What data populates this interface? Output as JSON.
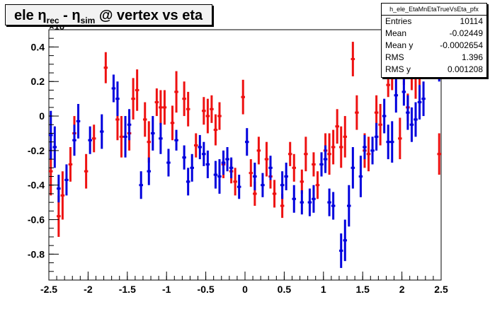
{
  "title": {
    "part1": "ele ",
    "eta1": "η",
    "sub1": "rec",
    "part2": " - ",
    "eta2": "η",
    "sub2": "sim",
    "part3": " @ vertex vs eta"
  },
  "exponent_label": "×10",
  "stats": {
    "name": "h_ele_EtaMnEtaTrueVsEta_pfx",
    "rows": [
      {
        "label": "Entries",
        "value": "10114"
      },
      {
        "label": "Mean",
        "value": "-0.02449"
      },
      {
        "label": "Mean y",
        "value": "-0.0002654"
      },
      {
        "label": "RMS",
        "value": "1.396"
      },
      {
        "label": "RMS y",
        "value": "0.001208"
      }
    ]
  },
  "colors": {
    "red_series": "#ee1111",
    "blue_series": "#0000dd"
  },
  "chart_data": {
    "type": "scatter",
    "title": "ele ηrec - ηsim @ vertex vs eta",
    "xlim": [
      -2.5,
      2.5
    ],
    "ylim": [
      -0.95,
      0.5
    ],
    "x_ticks": [
      -2.5,
      -2,
      -1.5,
      -1,
      -0.5,
      0,
      0.5,
      1,
      1.5,
      2,
      2.5
    ],
    "y_ticks": [
      -0.8,
      -0.6,
      -0.4,
      -0.2,
      0,
      0.2,
      0.4
    ],
    "x_tick_labels": [
      "-2.5",
      "-2",
      "-1.5",
      "-1",
      "-0.5",
      "0",
      "0.5",
      "1",
      "1.5",
      "2",
      "2.5"
    ],
    "y_tick_labels": [
      "-0.8",
      "-0.6",
      "-0.4",
      "-0.2",
      "0",
      "0.2",
      "0.4"
    ],
    "grid": false,
    "series": [
      {
        "color": "#ee1111",
        "bin_half_width": 0.025,
        "points": [
          [
            -2.475,
            -0.32,
            0.14
          ],
          [
            -2.375,
            -0.58,
            0.12
          ],
          [
            -2.325,
            -0.46,
            0.14
          ],
          [
            -2.225,
            -0.28,
            0.1
          ],
          [
            -2.175,
            -0.1,
            0.1
          ],
          [
            -2.025,
            -0.32,
            0.1
          ],
          [
            -1.925,
            -0.13,
            0.08
          ],
          [
            -1.775,
            0.28,
            0.09
          ],
          [
            -1.625,
            -0.02,
            0.12
          ],
          [
            -1.575,
            -0.12,
            0.12
          ],
          [
            -1.475,
            -0.1,
            0.1
          ],
          [
            -1.425,
            0.1,
            0.12
          ],
          [
            -1.375,
            0.15,
            0.12
          ],
          [
            -1.275,
            -0.02,
            0.1
          ],
          [
            -1.225,
            -0.15,
            0.12
          ],
          [
            -1.125,
            0.08,
            0.08
          ],
          [
            -1.075,
            0.05,
            0.1
          ],
          [
            -1.025,
            0.05,
            0.1
          ],
          [
            -0.925,
            -0.04,
            0.1
          ],
          [
            -0.875,
            0.14,
            0.12
          ],
          [
            -0.775,
            0.1,
            0.1
          ],
          [
            -0.725,
            0.04,
            0.1
          ],
          [
            -0.625,
            -0.17,
            0.07
          ],
          [
            -0.525,
            0.03,
            0.08
          ],
          [
            -0.475,
            0.0,
            0.1
          ],
          [
            -0.425,
            0.04,
            0.08
          ],
          [
            -0.375,
            -0.08,
            0.09
          ],
          [
            -0.325,
            0.0,
            0.08
          ],
          [
            -0.275,
            -0.28,
            0.08
          ],
          [
            -0.175,
            -0.32,
            0.07
          ],
          [
            -0.125,
            -0.38,
            0.08
          ],
          [
            -0.025,
            0.11,
            0.1
          ],
          [
            0.075,
            -0.33,
            0.08
          ],
          [
            0.125,
            -0.45,
            0.07
          ],
          [
            0.175,
            -0.2,
            0.08
          ],
          [
            0.275,
            -0.25,
            0.1
          ],
          [
            0.325,
            -0.35,
            0.07
          ],
          [
            0.375,
            -0.45,
            0.08
          ],
          [
            0.475,
            -0.52,
            0.07
          ],
          [
            0.575,
            -0.22,
            0.07
          ],
          [
            0.625,
            -0.3,
            0.08
          ],
          [
            0.725,
            -0.38,
            0.07
          ],
          [
            0.775,
            -0.22,
            0.1
          ],
          [
            0.875,
            -0.28,
            0.07
          ],
          [
            0.925,
            -0.4,
            0.08
          ],
          [
            1.025,
            -0.2,
            0.1
          ],
          [
            1.075,
            -0.22,
            0.12
          ],
          [
            1.125,
            -0.18,
            0.1
          ],
          [
            1.175,
            -0.06,
            0.1
          ],
          [
            1.225,
            -0.18,
            0.12
          ],
          [
            1.275,
            -0.12,
            0.12
          ],
          [
            1.375,
            0.33,
            0.1
          ],
          [
            1.425,
            0.02,
            0.1
          ],
          [
            1.525,
            -0.2,
            0.1
          ],
          [
            1.575,
            -0.22,
            0.1
          ],
          [
            1.675,
            0.02,
            0.1
          ],
          [
            1.725,
            -0.05,
            0.12
          ],
          [
            1.825,
            0.18,
            0.07
          ],
          [
            1.875,
            0.25,
            0.1
          ],
          [
            1.975,
            -0.13,
            0.12
          ],
          [
            2.025,
            0.28,
            0.1
          ],
          [
            2.075,
            0.05,
            0.08
          ],
          [
            2.125,
            0.25,
            0.1
          ],
          [
            2.175,
            0.22,
            0.12
          ],
          [
            2.225,
            0.3,
            0.12
          ],
          [
            2.475,
            -0.22,
            0.12
          ]
        ]
      },
      {
        "color": "#0000dd",
        "bin_half_width": 0.025,
        "points": [
          [
            -2.475,
            -0.11,
            0.14
          ],
          [
            -2.425,
            -0.18,
            0.12
          ],
          [
            -2.375,
            -0.42,
            0.08
          ],
          [
            -2.275,
            -0.37,
            0.09
          ],
          [
            -2.175,
            -0.14,
            0.09
          ],
          [
            -2.125,
            -0.03,
            0.1
          ],
          [
            -1.975,
            -0.14,
            0.08
          ],
          [
            -1.825,
            -0.09,
            0.1
          ],
          [
            -1.675,
            0.16,
            0.08
          ],
          [
            -1.625,
            0.1,
            0.1
          ],
          [
            -1.525,
            -0.12,
            0.12
          ],
          [
            -1.475,
            -0.05,
            0.09
          ],
          [
            -1.325,
            -0.4,
            0.08
          ],
          [
            -1.225,
            -0.32,
            0.08
          ],
          [
            -1.175,
            -0.1,
            0.1
          ],
          [
            -1.075,
            -0.13,
            0.09
          ],
          [
            -0.975,
            -0.27,
            0.08
          ],
          [
            -0.875,
            -0.14,
            0.06
          ],
          [
            -0.775,
            -0.24,
            0.07
          ],
          [
            -0.725,
            -0.38,
            0.08
          ],
          [
            -0.675,
            -0.3,
            0.08
          ],
          [
            -0.575,
            -0.18,
            0.07
          ],
          [
            -0.525,
            -0.22,
            0.07
          ],
          [
            -0.475,
            -0.28,
            0.08
          ],
          [
            -0.375,
            -0.34,
            0.08
          ],
          [
            -0.325,
            -0.35,
            0.1
          ],
          [
            -0.275,
            -0.27,
            0.07
          ],
          [
            -0.225,
            -0.25,
            0.07
          ],
          [
            -0.175,
            -0.3,
            0.06
          ],
          [
            -0.075,
            -0.41,
            0.07
          ],
          [
            0.025,
            -0.15,
            0.08
          ],
          [
            0.125,
            -0.35,
            0.08
          ],
          [
            0.225,
            -0.4,
            0.07
          ],
          [
            0.325,
            -0.3,
            0.07
          ],
          [
            0.475,
            -0.4,
            0.08
          ],
          [
            0.525,
            -0.35,
            0.08
          ],
          [
            0.625,
            -0.48,
            0.08
          ],
          [
            0.725,
            -0.5,
            0.07
          ],
          [
            0.825,
            -0.5,
            0.08
          ],
          [
            0.875,
            -0.48,
            0.08
          ],
          [
            0.975,
            -0.28,
            0.07
          ],
          [
            1.025,
            -0.25,
            0.08
          ],
          [
            1.075,
            -0.5,
            0.08
          ],
          [
            1.125,
            -0.52,
            0.08
          ],
          [
            1.225,
            -0.78,
            0.1
          ],
          [
            1.275,
            -0.72,
            0.12
          ],
          [
            1.325,
            -0.52,
            0.12
          ],
          [
            1.375,
            -0.3,
            0.12
          ],
          [
            1.475,
            -0.35,
            0.12
          ],
          [
            1.525,
            -0.18,
            0.07
          ],
          [
            1.625,
            -0.2,
            0.08
          ],
          [
            1.675,
            -0.12,
            0.08
          ],
          [
            1.775,
            0.0,
            0.1
          ],
          [
            1.825,
            -0.15,
            0.1
          ],
          [
            1.875,
            -0.15,
            0.12
          ],
          [
            1.925,
            0.12,
            0.1
          ],
          [
            2.025,
            0.14,
            0.08
          ],
          [
            2.075,
            0.02,
            0.1
          ],
          [
            2.125,
            -0.05,
            0.1
          ],
          [
            2.175,
            -0.02,
            0.1
          ],
          [
            2.225,
            0.08,
            0.1
          ],
          [
            2.275,
            0.1,
            0.1
          ],
          [
            2.475,
            0.3,
            0.1
          ]
        ]
      }
    ]
  }
}
